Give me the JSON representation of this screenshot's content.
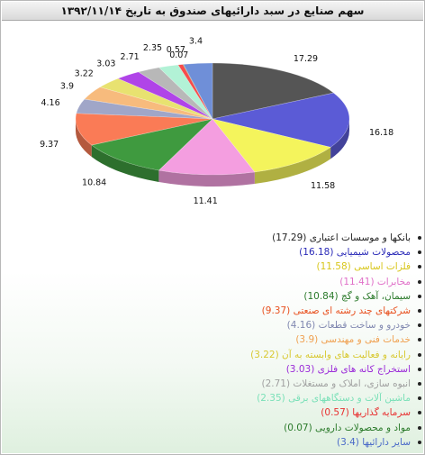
{
  "title": "سهم صنایع در سبد دارائیهای صندوق به تاریخ ۱۳۹۲/۱۱/۱۴",
  "chart_data": {
    "type": "pie",
    "title": "سهم صنایع در سبد دارائیهای صندوق به تاریخ ۱۳۹۲/۱۱/۱۴",
    "legend_position": "bottom",
    "slices": [
      {
        "label": "بانکها و موسسات اعتباری",
        "value": 17.29,
        "value_label": "17.29",
        "color": "#555555",
        "legend": "بانکها و موسسات اعتباری  (17.29)"
      },
      {
        "label": "محصولات شیمیایی",
        "value": 16.18,
        "value_label": "16.18",
        "color": "#5b5bd6",
        "legend": "محصولات شیمیایی  (16.18)"
      },
      {
        "label": "فلزات اساسی",
        "value": 11.58,
        "value_label": "11.58",
        "color": "#f4f45c",
        "legend": "فلزات اساسی  (11.58)"
      },
      {
        "label": "مخابرات",
        "value": 11.41,
        "value_label": "11.41",
        "color": "#f49ee0",
        "legend": "مخابرات  (11.41)"
      },
      {
        "label": "سیمان، آهک و گچ",
        "value": 10.84,
        "value_label": "10.84",
        "color": "#3f9a3f",
        "legend": "سیمان، آهک و گچ  (10.84)"
      },
      {
        "label": "شرکتهای چند رشته ای صنعتی",
        "value": 9.37,
        "value_label": "9.37",
        "color": "#fa7b56",
        "legend": "شرکتهای چند رشته ای صنعتی  (9.37)"
      },
      {
        "label": "خودرو و ساخت قطعات",
        "value": 4.16,
        "value_label": "4.16",
        "color": "#a0a6c8",
        "legend": "خودرو و ساخت قطعات  (4.16)"
      },
      {
        "label": "خدمات فنی و مهندسی",
        "value": 3.9,
        "value_label": "3.9",
        "color": "#f7bb7d",
        "legend": "خدمات فنی و مهندسی  (3.9)"
      },
      {
        "label": "رایانه و فعالیت های وابسته به آن",
        "value": 3.22,
        "value_label": "3.22",
        "color": "#e8e270",
        "legend": "رایانه و فعالیت های وابسته به آن  (3.22)"
      },
      {
        "label": "استخراج کانه های فلزی",
        "value": 3.03,
        "value_label": "3.03",
        "color": "#b044e8",
        "legend": "استخراج کانه های فلزی  (3.03)"
      },
      {
        "label": "انبوه سازی، املاک و مستغلات",
        "value": 2.71,
        "value_label": "2.71",
        "color": "#b8b8b8",
        "legend": "انبوه سازی، املاک و مستغلات  (2.71)"
      },
      {
        "label": "ماشین آلات و دستگاههای برقی",
        "value": 2.35,
        "value_label": "2.35",
        "color": "#b2f2d6",
        "legend": "ماشین آلات و دستگاههای برقی  (2.35)"
      },
      {
        "label": "سرمایه گذاریها",
        "value": 0.57,
        "value_label": "0.57",
        "color": "#f74b4b",
        "legend": "سرمایه گذاریها  (0.57)"
      },
      {
        "label": "مواد و محصولات دارویی",
        "value": 0.07,
        "value_label": "0.07",
        "color": "#2e7d2e",
        "legend": "مواد و محصولات دارویی  (0.07)"
      },
      {
        "label": "سایر دارائیها",
        "value": 3.4,
        "value_label": "3.4",
        "color": "#6f8fd8",
        "legend": "سایر دارائیها  (3.4)"
      }
    ],
    "legend_text_colors": [
      "#222222",
      "#2b2bb8",
      "#d8c61a",
      "#e070c8",
      "#2a7a2a",
      "#e8501e",
      "#8088b0",
      "#f0a050",
      "#d8c830",
      "#9a2ad8",
      "#a0a0a0",
      "#7ae0b8",
      "#e83030",
      "#2a7a2a",
      "#4a6ac8"
    ]
  }
}
